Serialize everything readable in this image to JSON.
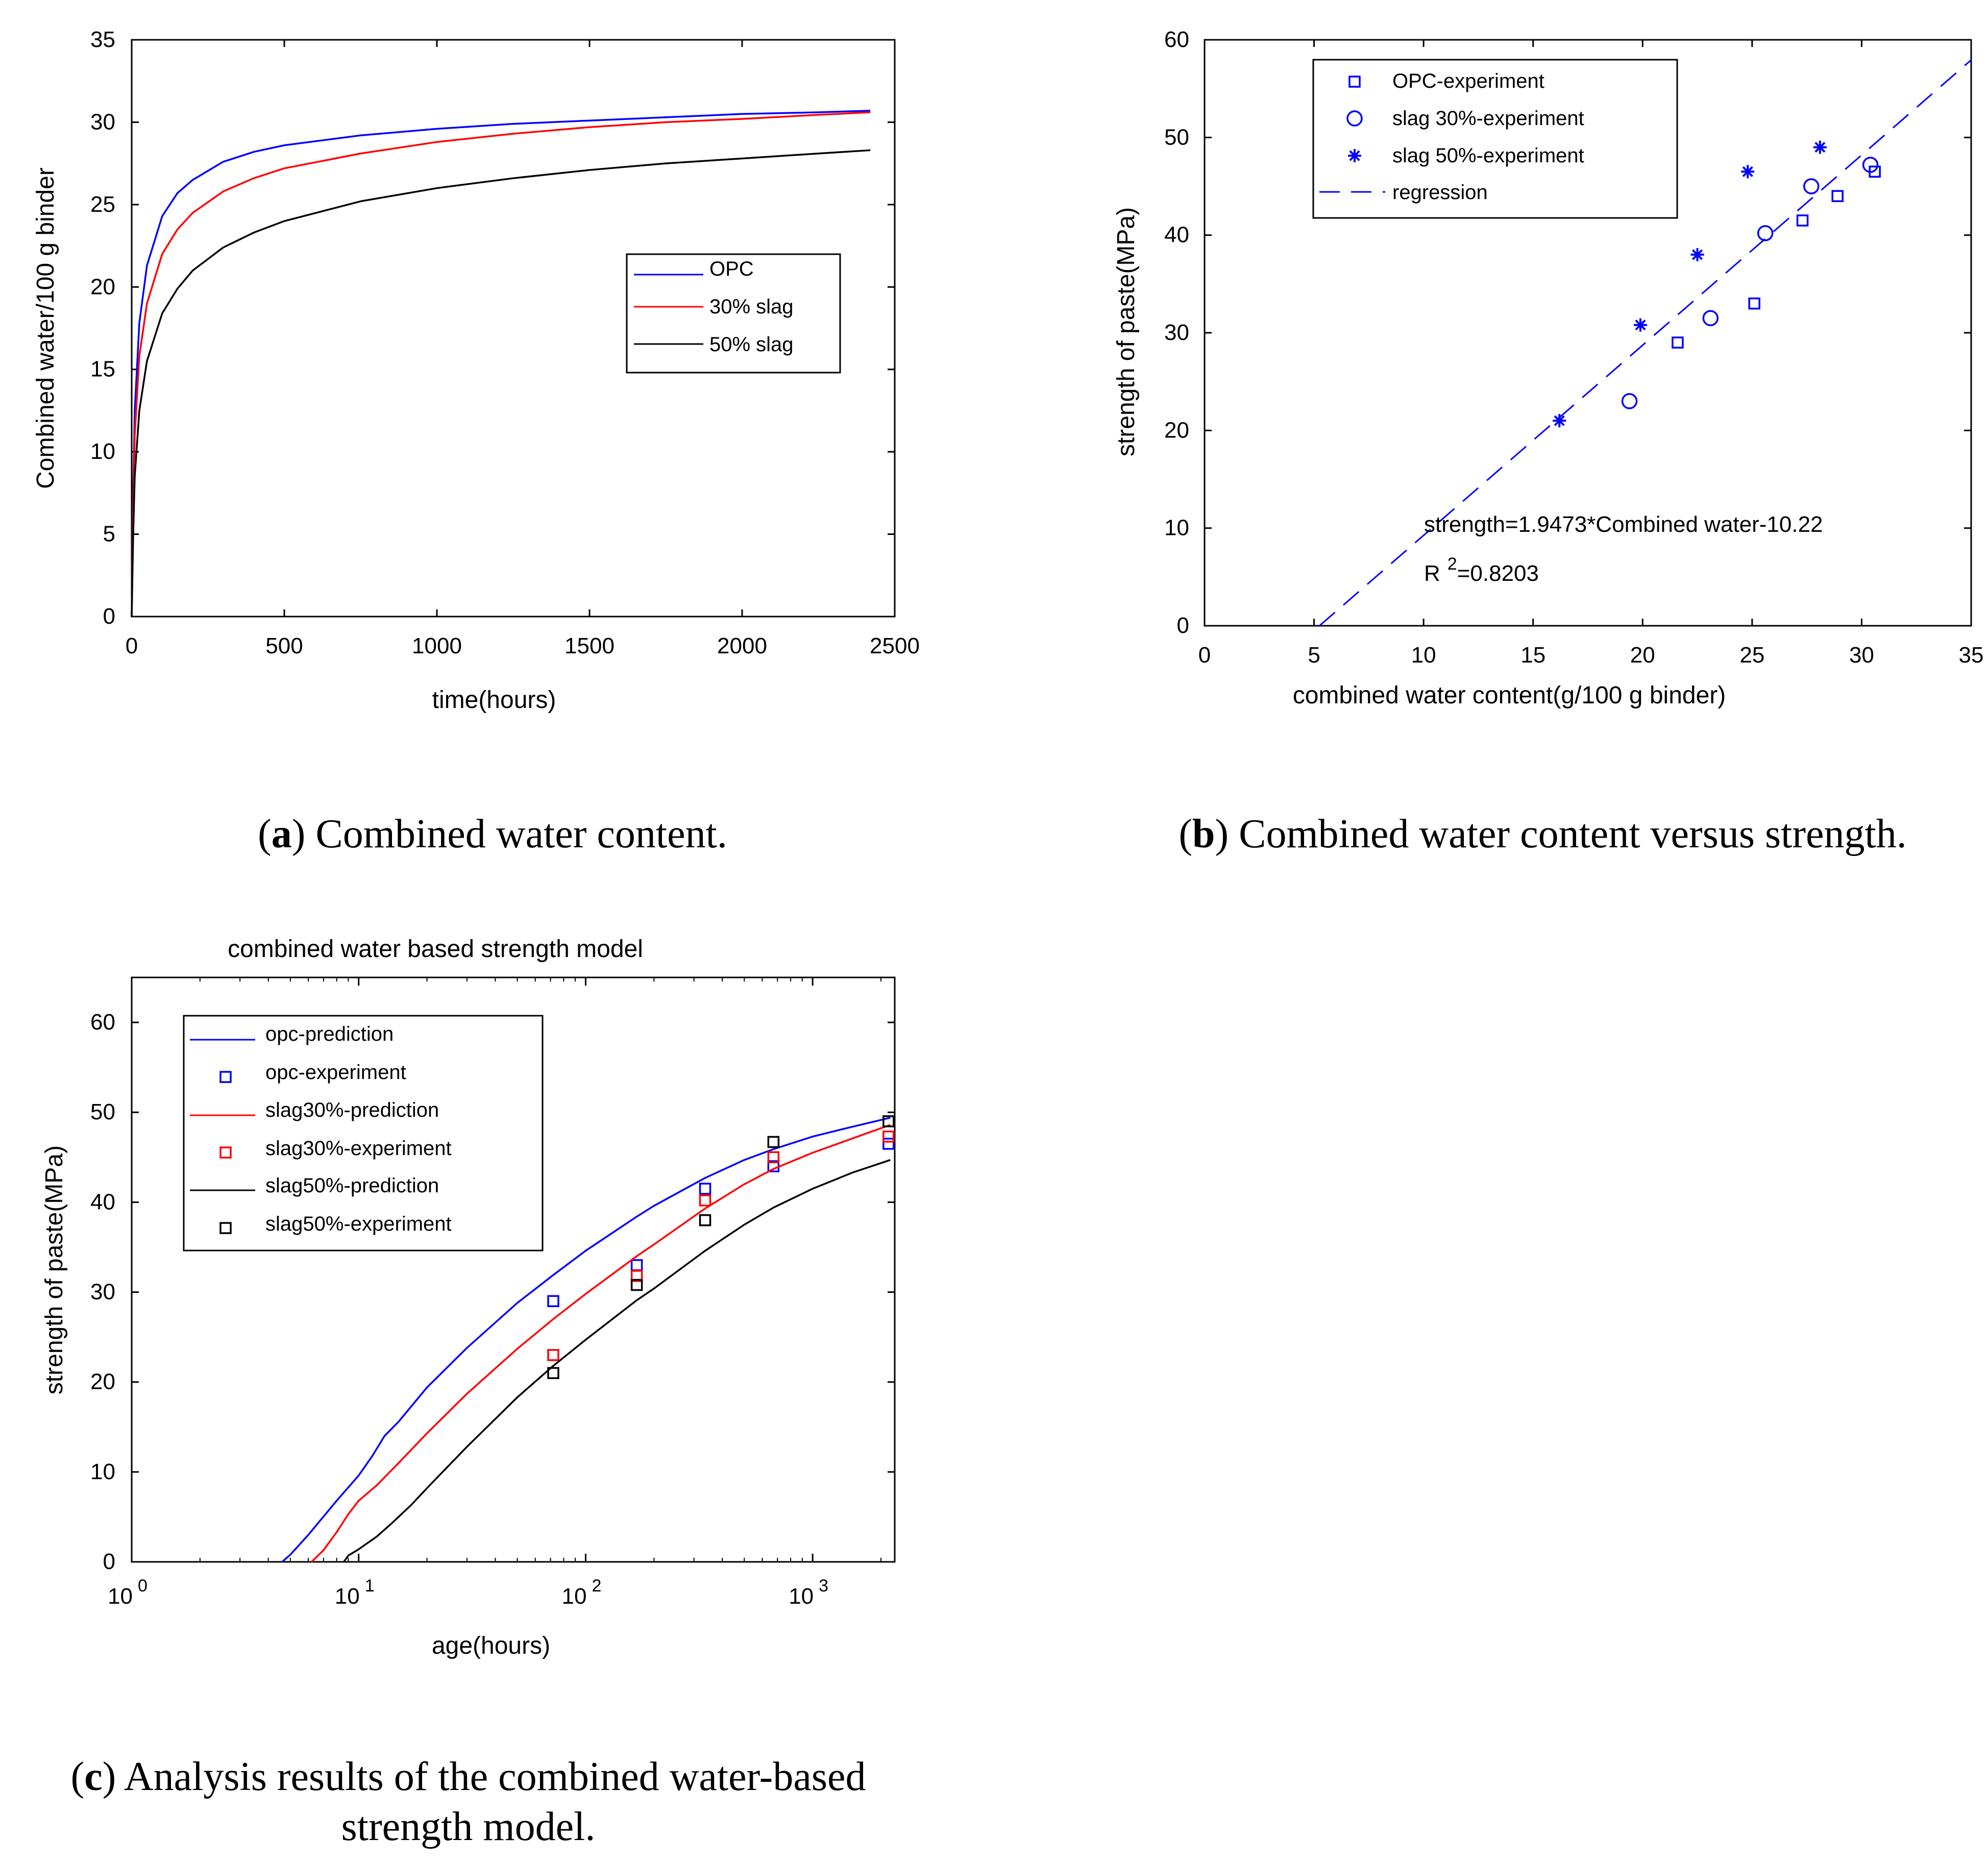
{
  "captions": {
    "a": {
      "label": "a",
      "text": "Combined water content."
    },
    "b": {
      "label": "b",
      "text": "Combined water content versus strength."
    },
    "c": {
      "label": "c",
      "text_line1": "Analysis results of the combined water-based",
      "text_line2": "strength model."
    }
  },
  "chart_data": [
    {
      "id": "a",
      "type": "line",
      "title": "",
      "xlabel": "time(hours)",
      "ylabel": "Combined water/100 g binder",
      "xlim": [
        0,
        2500
      ],
      "ylim": [
        0,
        35
      ],
      "xticks": [
        0,
        500,
        1000,
        1500,
        2000,
        2500
      ],
      "yticks": [
        0,
        5,
        10,
        15,
        20,
        25,
        30,
        35
      ],
      "grid": false,
      "legend_position": "center-right",
      "series": [
        {
          "name": "OPC",
          "color": "#0000ff",
          "x": [
            0,
            5,
            10,
            25,
            50,
            100,
            150,
            200,
            300,
            400,
            500,
            750,
            1000,
            1250,
            1500,
            1750,
            2000,
            2250,
            2420
          ],
          "y": [
            0,
            7.5,
            12.5,
            17.8,
            21.3,
            24.3,
            25.7,
            26.5,
            27.6,
            28.2,
            28.6,
            29.2,
            29.6,
            29.9,
            30.1,
            30.3,
            30.5,
            30.6,
            30.7
          ]
        },
        {
          "name": "30% slag",
          "color": "#ff0000",
          "x": [
            0,
            5,
            10,
            25,
            50,
            100,
            150,
            200,
            300,
            400,
            500,
            750,
            1000,
            1250,
            1500,
            1750,
            2000,
            2250,
            2420
          ],
          "y": [
            0,
            6.5,
            11.0,
            15.8,
            19.0,
            22.0,
            23.5,
            24.5,
            25.8,
            26.6,
            27.2,
            28.1,
            28.8,
            29.3,
            29.7,
            30.0,
            30.2,
            30.45,
            30.6
          ]
        },
        {
          "name": "50% slag",
          "color": "#000000",
          "x": [
            0,
            5,
            10,
            25,
            50,
            100,
            150,
            200,
            300,
            400,
            500,
            750,
            1000,
            1250,
            1500,
            1750,
            2000,
            2250,
            2420
          ],
          "y": [
            0,
            5.0,
            8.5,
            12.5,
            15.5,
            18.4,
            19.9,
            21.0,
            22.4,
            23.3,
            24.0,
            25.2,
            26.0,
            26.6,
            27.1,
            27.5,
            27.8,
            28.1,
            28.3
          ]
        }
      ]
    },
    {
      "id": "b",
      "type": "scatter",
      "title": "",
      "xlabel": "combined water content(g/100 g binder)",
      "ylabel": "strength of paste(MPa)",
      "xlim": [
        0,
        35
      ],
      "ylim": [
        0,
        60
      ],
      "xticks": [
        0,
        5,
        10,
        15,
        20,
        25,
        30,
        35
      ],
      "yticks": [
        0,
        10,
        20,
        30,
        40,
        50,
        60
      ],
      "grid": false,
      "legend_position": "top-left",
      "series": [
        {
          "name": "OPC-experiment",
          "marker": "square",
          "color": "#0000ff",
          "x": [
            21.6,
            25.1,
            27.3,
            28.9,
            30.6
          ],
          "y": [
            29.0,
            33.0,
            41.5,
            44.0,
            46.5
          ]
        },
        {
          "name": "slag 30%-experiment",
          "marker": "circle",
          "color": "#0000ff",
          "x": [
            19.4,
            23.1,
            25.6,
            27.7,
            30.4
          ],
          "y": [
            23.0,
            31.5,
            40.2,
            45.0,
            47.2
          ]
        },
        {
          "name": "slag 50%-experiment",
          "marker": "star",
          "color": "#0000ff",
          "x": [
            16.2,
            19.9,
            22.5,
            24.8,
            28.1
          ],
          "y": [
            21.0,
            30.8,
            38.0,
            46.5,
            49.0
          ]
        },
        {
          "name": "regression",
          "marker": "dashed-line",
          "color": "#0000ff",
          "slope": 1.9473,
          "intercept": -10.22
        }
      ],
      "annotations": {
        "equation": "strength=1.9473*Combined water-10.22",
        "r2_prefix": "R",
        "r2_sup": "2",
        "r2_value": "=0.8203"
      }
    },
    {
      "id": "c",
      "type": "line",
      "title": "combined water based strength model",
      "xlabel": "age(hours)",
      "ylabel": "strength of paste(MPa)",
      "xscale": "log",
      "xlim": [
        1,
        2300
      ],
      "ylim": [
        0,
        65
      ],
      "xticks": [
        {
          "value": 1,
          "base": "10",
          "exp": "0"
        },
        {
          "value": 10,
          "base": "10",
          "exp": "1"
        },
        {
          "value": 100,
          "base": "10",
          "exp": "2"
        },
        {
          "value": 1000,
          "base": "10",
          "exp": "3"
        }
      ],
      "yticks": [
        0,
        10,
        20,
        30,
        40,
        50,
        60
      ],
      "grid": false,
      "legend_position": "top-left",
      "series": [
        {
          "name": "opc-prediction",
          "style": "line",
          "color": "#0000ff",
          "x": [
            4.6,
            5,
            6,
            8,
            10,
            11.5,
            13,
            15,
            20,
            30,
            50,
            72,
            100,
            168,
            200,
            336,
            500,
            672,
            1000,
            1500,
            2200
          ],
          "y": [
            0,
            0.8,
            3.0,
            6.8,
            9.6,
            11.8,
            14.0,
            15.6,
            19.4,
            23.8,
            28.8,
            31.9,
            34.6,
            38.4,
            39.6,
            42.7,
            44.7,
            45.9,
            47.3,
            48.4,
            49.4
          ]
        },
        {
          "name": "opc-experiment",
          "style": "square",
          "color": "#0000ff",
          "x": [
            72,
            168,
            336,
            672,
            2160
          ],
          "y": [
            29.0,
            33.0,
            41.5,
            44.0,
            46.5
          ]
        },
        {
          "name": "slag30%-prediction",
          "style": "line",
          "color": "#ff0000",
          "x": [
            6.2,
            7,
            8,
            9,
            10,
            12,
            15,
            20,
            30,
            50,
            72,
            100,
            168,
            200,
            336,
            500,
            672,
            1000,
            1500,
            2200
          ],
          "y": [
            0,
            1.3,
            3.3,
            5.3,
            6.8,
            8.5,
            11.0,
            14.3,
            18.7,
            23.7,
            27.0,
            29.8,
            34.0,
            35.3,
            39.3,
            42.0,
            43.7,
            45.5,
            47.1,
            48.6
          ]
        },
        {
          "name": "slag30%-experiment",
          "style": "square",
          "color": "#ff0000",
          "x": [
            72,
            168,
            336,
            672,
            2160
          ],
          "y": [
            23.0,
            31.8,
            40.2,
            45.0,
            47.3
          ]
        },
        {
          "name": "slag50%-prediction",
          "style": "line",
          "color": "#000000",
          "x": [
            8.6,
            9,
            10,
            12,
            14,
            17,
            20,
            30,
            50,
            72,
            100,
            168,
            200,
            336,
            500,
            672,
            1000,
            1500,
            2200
          ],
          "y": [
            0,
            0.7,
            1.4,
            2.8,
            4.3,
            6.3,
            8.2,
            12.8,
            18.3,
            21.8,
            24.7,
            29.1,
            30.4,
            34.6,
            37.5,
            39.4,
            41.5,
            43.3,
            44.7
          ]
        },
        {
          "name": "slag50%-experiment",
          "style": "square",
          "color": "#000000",
          "x": [
            72,
            168,
            336,
            672,
            2160
          ],
          "y": [
            21.0,
            30.8,
            38.0,
            46.7,
            49.0
          ]
        }
      ]
    }
  ]
}
